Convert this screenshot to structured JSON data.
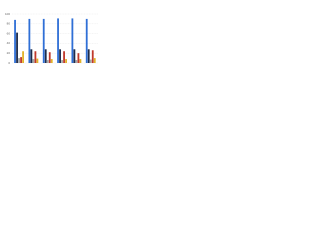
{
  "chart_data": {
    "type": "bar",
    "categories": [
      null,
      null,
      null,
      null,
      null,
      null
    ],
    "series": [
      {
        "color": "#2f6fd6",
        "values": [
          88,
          90,
          90,
          91,
          91,
          90
        ]
      },
      {
        "color": "#1c2b4b",
        "values": [
          62,
          28,
          28,
          28,
          28,
          28
        ]
      },
      {
        "color": "#a6a6a6",
        "values": [
          10,
          8,
          6,
          6,
          6,
          7
        ]
      },
      {
        "color": "#c0392b",
        "values": [
          12,
          24,
          22,
          24,
          20,
          26
        ]
      },
      {
        "color": "#e2b227",
        "values": [
          24,
          9,
          8,
          8,
          8,
          10
        ]
      }
    ],
    "ylim": [
      0,
      100
    ],
    "yticks": [
      0,
      20,
      40,
      60,
      80,
      100
    ],
    "grid": true
  }
}
